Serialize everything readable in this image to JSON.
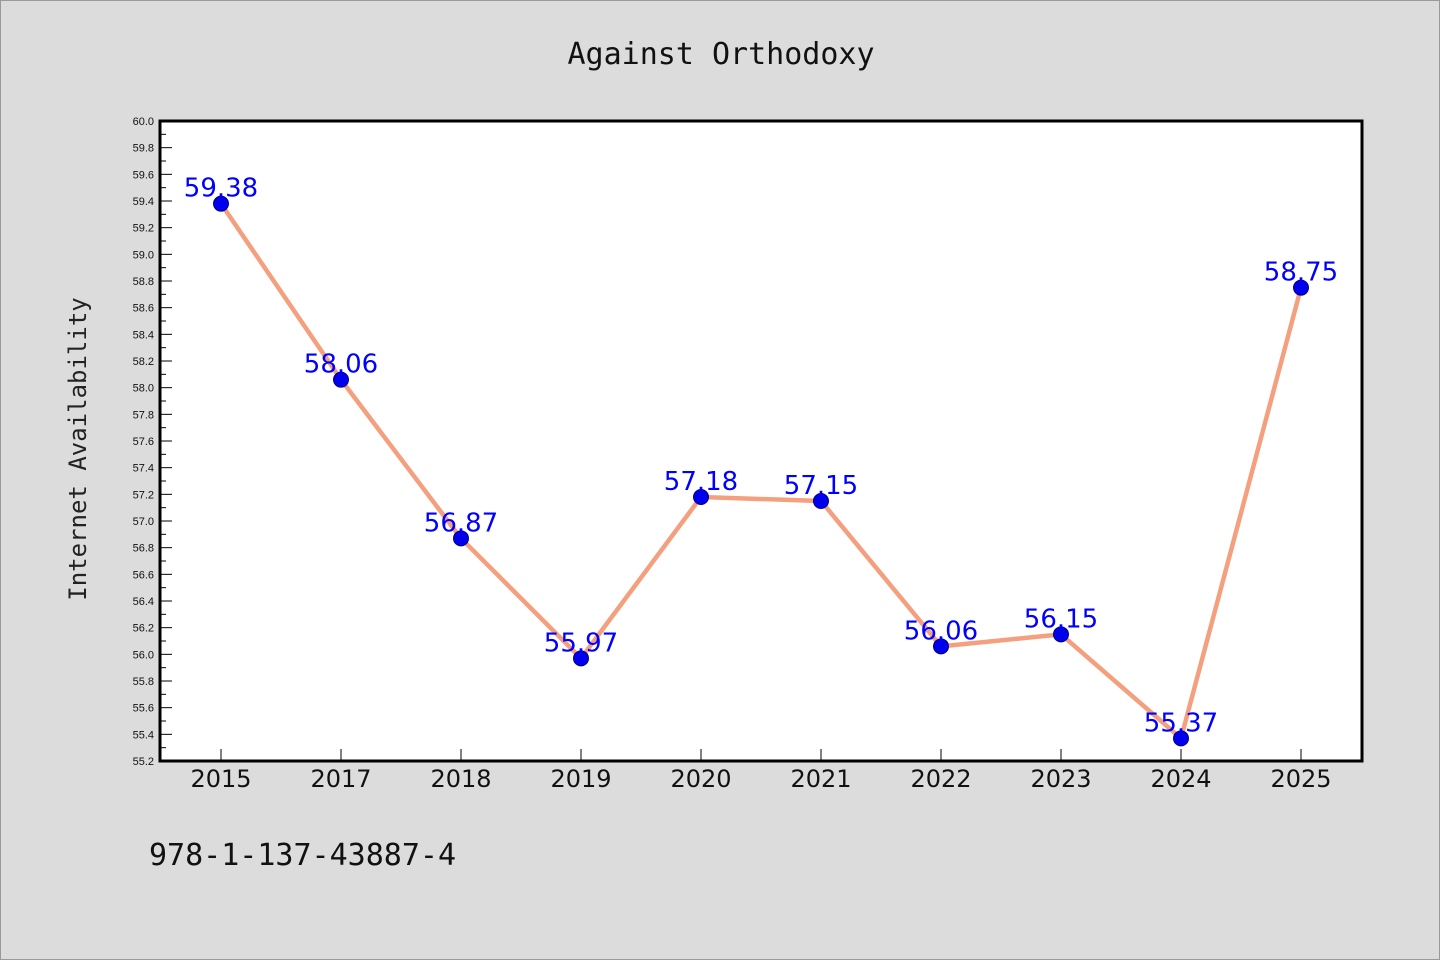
{
  "chart_data": {
    "type": "line",
    "title": "Against Orthodoxy",
    "xlabel": "",
    "ylabel": "Internet Availability",
    "categories": [
      "2015",
      "2017",
      "2018",
      "2019",
      "2020",
      "2021",
      "2022",
      "2023",
      "2024",
      "2025"
    ],
    "series": [
      {
        "values": [
          59.38,
          58.06,
          56.87,
          55.97,
          57.18,
          57.15,
          56.06,
          56.15,
          55.37,
          58.75
        ],
        "data_labels": [
          "59.38",
          "58.06",
          "56.87",
          "55.97",
          "57.18",
          "57.15",
          "56.06",
          "56.15",
          "55.37",
          "58.75"
        ]
      }
    ],
    "ylim": [
      55.2,
      60.0
    ],
    "yticks": [
      "55.2",
      "55.4",
      "55.6",
      "55.8",
      "56.0",
      "56.2",
      "56.4",
      "56.6",
      "56.8",
      "57.0",
      "57.2",
      "57.4",
      "57.6",
      "57.8",
      "58.0",
      "58.2",
      "58.4",
      "58.6",
      "58.8",
      "59.0",
      "59.2",
      "59.4",
      "59.6",
      "59.8",
      "60.0"
    ],
    "grid": false,
    "line_color": "#f4a07f",
    "marker_color": "#0000ee",
    "label_color": "#0000ff"
  },
  "footer": {
    "isbn": "978-1-137-43887-4"
  }
}
